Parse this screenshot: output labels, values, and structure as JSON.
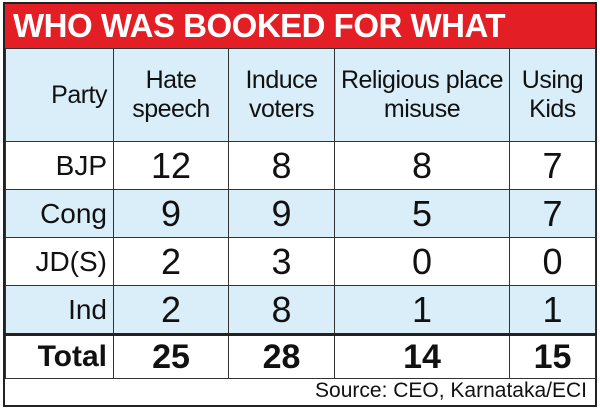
{
  "title": "WHO WAS BOOKED FOR WHAT",
  "table": {
    "header": [
      "Party",
      "Hate speech",
      "Induce voters",
      "Religious place misuse",
      "Using Kids"
    ],
    "rows": [
      [
        "BJP",
        12,
        8,
        8,
        7
      ],
      [
        "Cong",
        9,
        9,
        5,
        7
      ],
      [
        "JD(S)",
        2,
        3,
        0,
        0
      ],
      [
        "Ind",
        2,
        8,
        1,
        1
      ]
    ],
    "total": [
      "Total",
      25,
      28,
      14,
      15
    ]
  },
  "source": "Source: CEO, Karnataka/ECI"
}
